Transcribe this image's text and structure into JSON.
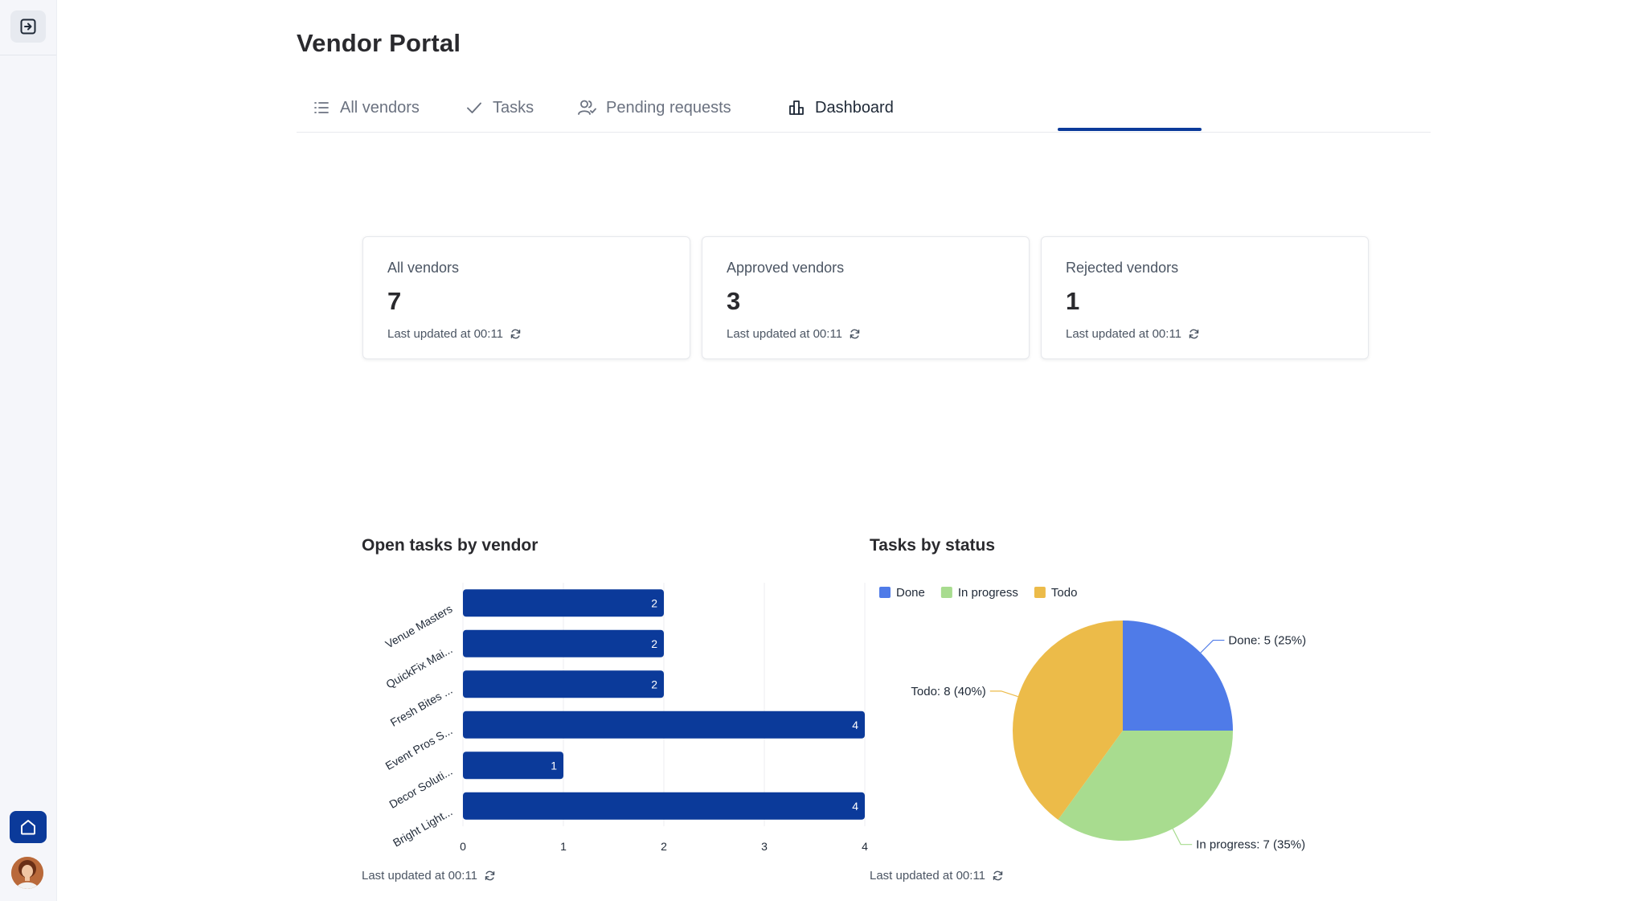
{
  "app": {
    "title": "Vendor Portal"
  },
  "tabs": [
    {
      "label": "All vendors",
      "icon": "list-icon"
    },
    {
      "label": "Tasks",
      "icon": "check-icon"
    },
    {
      "label": "Pending requests",
      "icon": "users-icon"
    },
    {
      "label": "Dashboard",
      "icon": "bar-chart-icon",
      "active": true
    }
  ],
  "stats": [
    {
      "label": "All vendors",
      "value": "7",
      "updated": "Last updated at 00:11"
    },
    {
      "label": "Approved vendors",
      "value": "3",
      "updated": "Last updated at 00:11"
    },
    {
      "label": "Rejected vendors",
      "value": "1",
      "updated": "Last updated at 00:11"
    }
  ],
  "charts": {
    "bar_title": "Open tasks by vendor",
    "bar_updated": "Last updated at 00:11",
    "pie_title": "Tasks by status",
    "pie_updated": "Last updated at 00:11"
  },
  "colors": {
    "accent": "#0b3a9a",
    "bar": "#0b3a9a",
    "done": "#4f7be8",
    "in_progress": "#a8dc8f",
    "todo": "#ecbb49"
  },
  "chart_data": [
    {
      "type": "bar",
      "orientation": "horizontal",
      "categories": [
        "Venue Masters",
        "QuickFix Mai...",
        "Fresh Bites ...",
        "Event Pros S...",
        "Decor Soluti...",
        "Bright Light..."
      ],
      "values": [
        2,
        2,
        2,
        4,
        1,
        4
      ],
      "xlim": [
        0,
        4
      ],
      "xticks": [
        0,
        1,
        2,
        3,
        4
      ],
      "data_labels": true,
      "grid": true
    },
    {
      "type": "pie",
      "legend_position": "top-left",
      "slices": [
        {
          "label": "Done",
          "value": 5,
          "percent": 25,
          "slice_label": "Done: 5 (25%)"
        },
        {
          "label": "In progress",
          "value": 7,
          "percent": 35,
          "slice_label": "In progress: 7 (35%)"
        },
        {
          "label": "Todo",
          "value": 8,
          "percent": 40,
          "slice_label": "Todo: 8 (40%)"
        }
      ]
    }
  ]
}
